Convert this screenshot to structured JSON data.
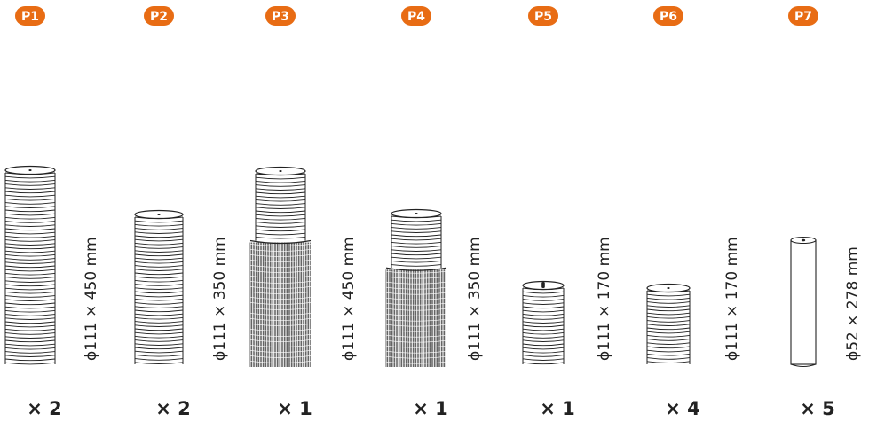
{
  "colors": {
    "badge": "#e86c14",
    "line": "#222222"
  },
  "parts": [
    {
      "id": "P1",
      "dimension": "ϕ111 × 450 mm",
      "quantity": "× 2",
      "style": "ribbed"
    },
    {
      "id": "P2",
      "dimension": "ϕ111 × 350 mm",
      "quantity": "× 2",
      "style": "ribbed"
    },
    {
      "id": "P3",
      "dimension": "ϕ111 × 450 mm",
      "quantity": "× 1",
      "style": "brush-top"
    },
    {
      "id": "P4",
      "dimension": "ϕ111 × 350 mm",
      "quantity": "× 1",
      "style": "brush-top"
    },
    {
      "id": "P5",
      "dimension": "ϕ111 × 170 mm",
      "quantity": "× 1",
      "style": "ribbed-slot"
    },
    {
      "id": "P6",
      "dimension": "ϕ111 × 170 mm",
      "quantity": "× 4",
      "style": "ribbed"
    },
    {
      "id": "P7",
      "dimension": "ϕ52 × 278 mm",
      "quantity": "× 5",
      "style": "tube"
    }
  ]
}
